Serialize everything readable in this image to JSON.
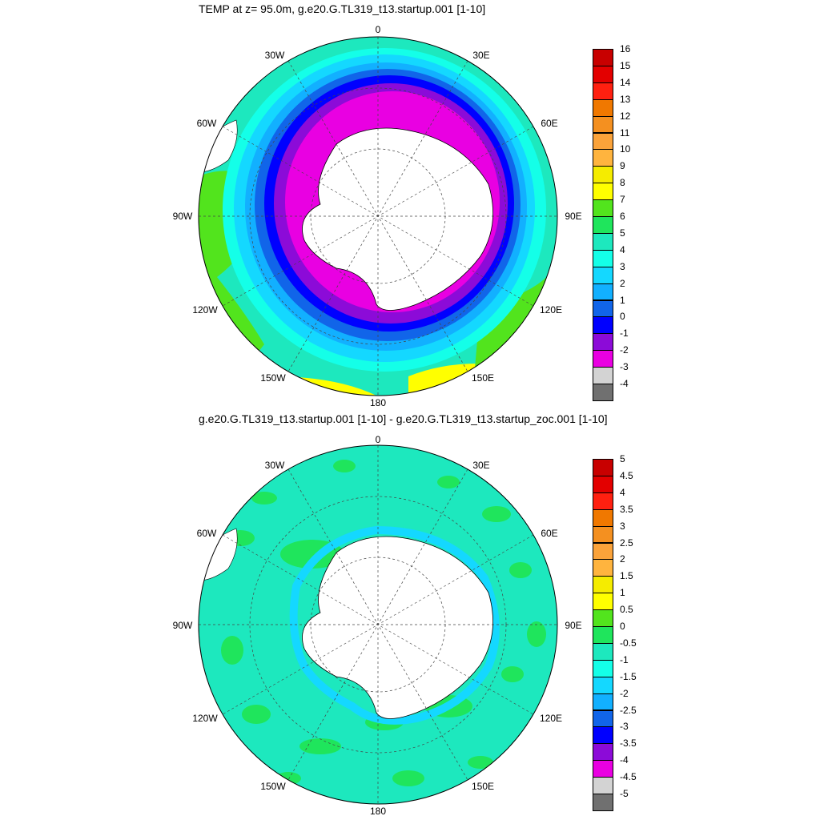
{
  "maps": [
    {
      "title": "TEMP at z=  95.0m, g.e20.G.TL319_t13.startup.001 [1-10]",
      "lon_labels": {
        "n": "0",
        "ne": "30E",
        "ene": "60E",
        "e": "90E",
        "ese": "120E",
        "se": "150E",
        "s": "180",
        "sw": "150W",
        "wsw": "120W",
        "w": "90W",
        "wnw": "60W",
        "nw": "30W"
      },
      "colorbar": {
        "ticks": [
          "16",
          "15",
          "14",
          "13",
          "12",
          "11",
          "10",
          "9",
          "8",
          "7",
          "6",
          "5",
          "4",
          "3",
          "2",
          "1",
          "0",
          "-1",
          "-2",
          "-3",
          "-4"
        ],
        "colors": [
          "#c80000",
          "#e30000",
          "#ff2010",
          "#f07800",
          "#f49020",
          "#fba33a",
          "#ffb43e",
          "#f5ec00",
          "#ffff00",
          "#52e41d",
          "#1fe55c",
          "#1de8be",
          "#14ffe8",
          "#14d8ff",
          "#12b0ff",
          "#1165e9",
          "#0000ff",
          "#8c0bd8",
          "#e900e2",
          "#d3d3d3",
          "#707070"
        ]
      }
    },
    {
      "title": "g.e20.G.TL319_t13.startup.001 [1-10] - g.e20.G.TL319_t13.startup_zoc.001 [1-10]",
      "lon_labels": {
        "n": "0",
        "ne": "30E",
        "ene": "60E",
        "e": "90E",
        "ese": "120E",
        "se": "150E",
        "s": "180",
        "sw": "150W",
        "wsw": "120W",
        "w": "90W",
        "wnw": "60W",
        "nw": "30W"
      },
      "colorbar": {
        "ticks": [
          "5",
          "4.5",
          "4",
          "3.5",
          "3",
          "2.5",
          "2",
          "1.5",
          "1",
          "0.5",
          "0",
          "-0.5",
          "-1",
          "-1.5",
          "-2",
          "-2.5",
          "-3",
          "-3.5",
          "-4",
          "-4.5",
          "-5"
        ],
        "colors": [
          "#c80000",
          "#e30000",
          "#ff2010",
          "#f07800",
          "#f49020",
          "#fba33a",
          "#ffb43e",
          "#f5ec00",
          "#ffff00",
          "#52e41d",
          "#1fe55c",
          "#1de8be",
          "#14ffe8",
          "#14d8ff",
          "#12b0ff",
          "#1165e9",
          "#0000ff",
          "#8c0bd8",
          "#e900e2",
          "#d3d3d3",
          "#707070"
        ]
      }
    }
  ]
}
